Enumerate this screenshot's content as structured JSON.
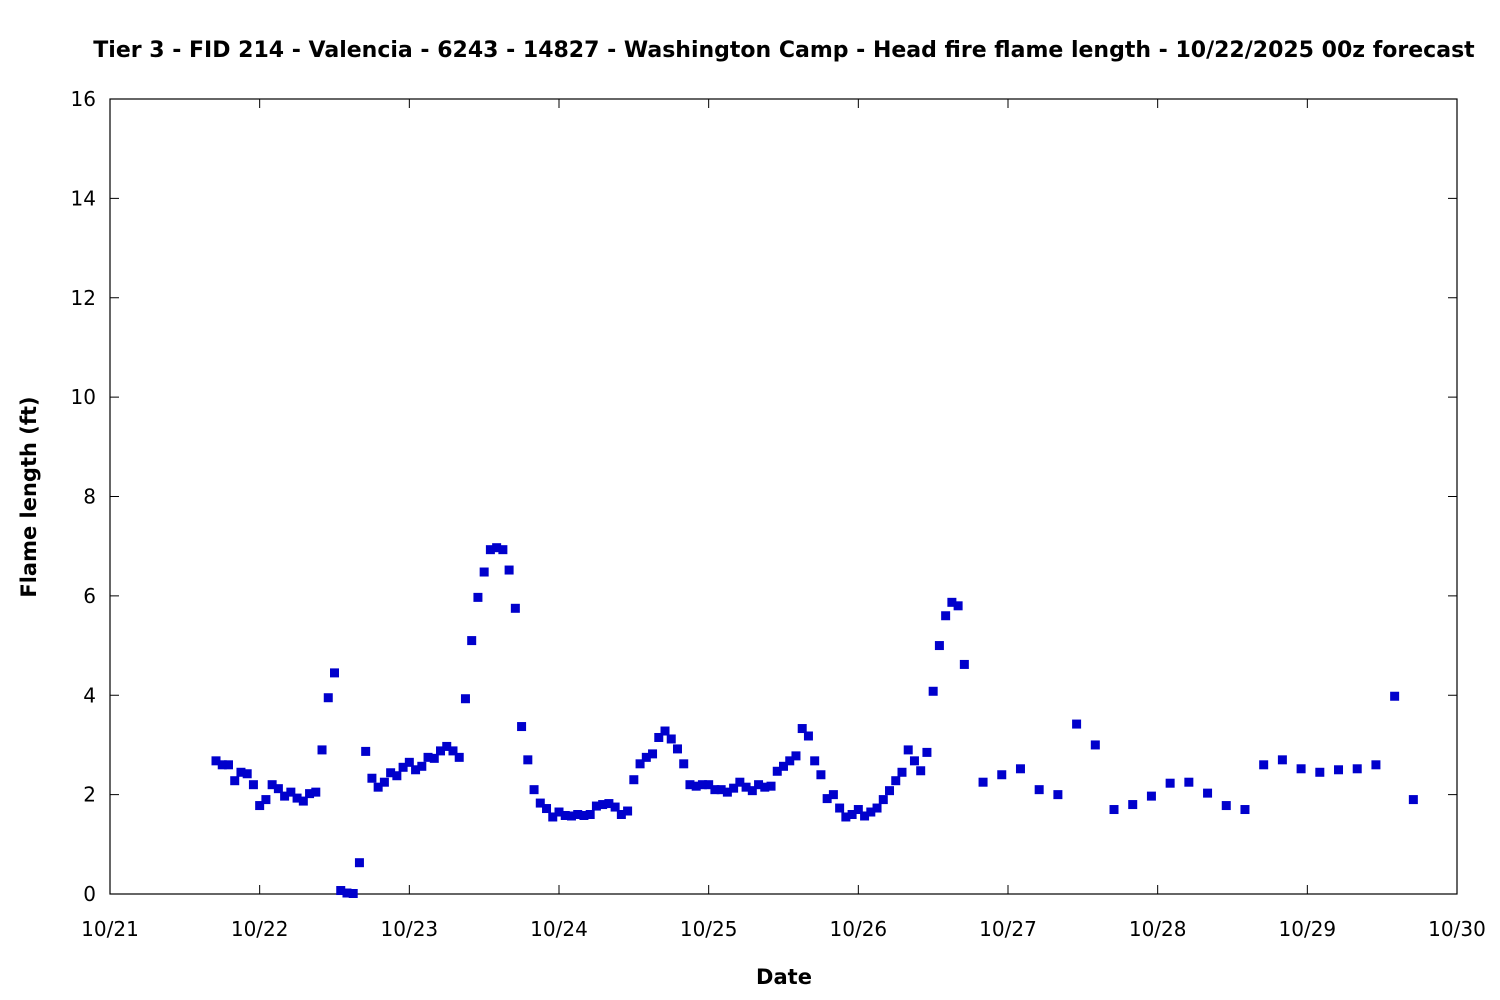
{
  "chart_data": {
    "type": "scatter",
    "title": "Tier 3 - FID 214 - Valencia - 6243 - 14827 - Washington Camp - Head fire flame length - 10/22/2025 00z forecast",
    "xlabel": "Date",
    "ylabel": "Flame length (ft)",
    "xlim": [
      "2025-10-21 00:00",
      "2025-10-30 00:00"
    ],
    "ylim": [
      0,
      16
    ],
    "x_tick_labels": [
      "10/21",
      "10/22",
      "10/23",
      "10/24",
      "10/25",
      "10/26",
      "10/27",
      "10/28",
      "10/29",
      "10/30"
    ],
    "y_tick_labels": [
      "0",
      "2",
      "4",
      "6",
      "8",
      "10",
      "12",
      "14",
      "16"
    ],
    "grid": false,
    "legend": "none",
    "marker": "square",
    "color": "#0000cc",
    "series": [
      {
        "points": [
          [
            "2025-10-21 17:00",
            2.68
          ],
          [
            "2025-10-21 18:00",
            2.6
          ],
          [
            "2025-10-21 19:00",
            2.6
          ],
          [
            "2025-10-21 20:00",
            2.28
          ],
          [
            "2025-10-21 21:00",
            2.45
          ],
          [
            "2025-10-21 22:00",
            2.42
          ],
          [
            "2025-10-21 23:00",
            2.2
          ],
          [
            "2025-10-22 00:00",
            1.78
          ],
          [
            "2025-10-22 01:00",
            1.9
          ],
          [
            "2025-10-22 02:00",
            2.2
          ],
          [
            "2025-10-22 03:00",
            2.12
          ],
          [
            "2025-10-22 04:00",
            1.97
          ],
          [
            "2025-10-22 05:00",
            2.05
          ],
          [
            "2025-10-22 06:00",
            1.93
          ],
          [
            "2025-10-22 07:00",
            1.87
          ],
          [
            "2025-10-22 08:00",
            2.02
          ],
          [
            "2025-10-22 09:00",
            2.05
          ],
          [
            "2025-10-22 10:00",
            2.9
          ],
          [
            "2025-10-22 11:00",
            3.95
          ],
          [
            "2025-10-22 12:00",
            4.45
          ],
          [
            "2025-10-22 13:00",
            0.07
          ],
          [
            "2025-10-22 14:00",
            0.02
          ],
          [
            "2025-10-22 15:00",
            0.01
          ],
          [
            "2025-10-22 16:00",
            0.63
          ],
          [
            "2025-10-22 17:00",
            2.87
          ],
          [
            "2025-10-22 18:00",
            2.33
          ],
          [
            "2025-10-22 19:00",
            2.15
          ],
          [
            "2025-10-22 20:00",
            2.25
          ],
          [
            "2025-10-22 21:00",
            2.44
          ],
          [
            "2025-10-22 22:00",
            2.38
          ],
          [
            "2025-10-22 23:00",
            2.55
          ],
          [
            "2025-10-23 00:00",
            2.65
          ],
          [
            "2025-10-23 01:00",
            2.5
          ],
          [
            "2025-10-23 02:00",
            2.57
          ],
          [
            "2025-10-23 03:00",
            2.75
          ],
          [
            "2025-10-23 04:00",
            2.73
          ],
          [
            "2025-10-23 05:00",
            2.88
          ],
          [
            "2025-10-23 06:00",
            2.97
          ],
          [
            "2025-10-23 07:00",
            2.88
          ],
          [
            "2025-10-23 08:00",
            2.75
          ],
          [
            "2025-10-23 09:00",
            3.93
          ],
          [
            "2025-10-23 10:00",
            5.1
          ],
          [
            "2025-10-23 11:00",
            5.97
          ],
          [
            "2025-10-23 12:00",
            6.48
          ],
          [
            "2025-10-23 13:00",
            6.93
          ],
          [
            "2025-10-23 14:00",
            6.97
          ],
          [
            "2025-10-23 15:00",
            6.93
          ],
          [
            "2025-10-23 16:00",
            6.52
          ],
          [
            "2025-10-23 17:00",
            5.75
          ],
          [
            "2025-10-23 18:00",
            3.37
          ],
          [
            "2025-10-23 19:00",
            2.7
          ],
          [
            "2025-10-23 20:00",
            2.1
          ],
          [
            "2025-10-23 21:00",
            1.83
          ],
          [
            "2025-10-23 22:00",
            1.72
          ],
          [
            "2025-10-23 23:00",
            1.55
          ],
          [
            "2025-10-24 00:00",
            1.65
          ],
          [
            "2025-10-24 01:00",
            1.58
          ],
          [
            "2025-10-24 02:00",
            1.57
          ],
          [
            "2025-10-24 03:00",
            1.6
          ],
          [
            "2025-10-24 04:00",
            1.58
          ],
          [
            "2025-10-24 05:00",
            1.6
          ],
          [
            "2025-10-24 06:00",
            1.77
          ],
          [
            "2025-10-24 07:00",
            1.8
          ],
          [
            "2025-10-24 08:00",
            1.82
          ],
          [
            "2025-10-24 09:00",
            1.75
          ],
          [
            "2025-10-24 10:00",
            1.6
          ],
          [
            "2025-10-24 11:00",
            1.67
          ],
          [
            "2025-10-24 12:00",
            2.3
          ],
          [
            "2025-10-24 13:00",
            2.62
          ],
          [
            "2025-10-24 14:00",
            2.75
          ],
          [
            "2025-10-24 15:00",
            2.82
          ],
          [
            "2025-10-24 16:00",
            3.15
          ],
          [
            "2025-10-24 17:00",
            3.28
          ],
          [
            "2025-10-24 18:00",
            3.12
          ],
          [
            "2025-10-24 19:00",
            2.92
          ],
          [
            "2025-10-24 20:00",
            2.62
          ],
          [
            "2025-10-24 21:00",
            2.2
          ],
          [
            "2025-10-24 22:00",
            2.17
          ],
          [
            "2025-10-24 23:00",
            2.2
          ],
          [
            "2025-10-25 00:00",
            2.2
          ],
          [
            "2025-10-25 01:00",
            2.1
          ],
          [
            "2025-10-25 02:00",
            2.1
          ],
          [
            "2025-10-25 03:00",
            2.05
          ],
          [
            "2025-10-25 04:00",
            2.13
          ],
          [
            "2025-10-25 05:00",
            2.25
          ],
          [
            "2025-10-25 06:00",
            2.15
          ],
          [
            "2025-10-25 07:00",
            2.08
          ],
          [
            "2025-10-25 08:00",
            2.2
          ],
          [
            "2025-10-25 09:00",
            2.15
          ],
          [
            "2025-10-25 10:00",
            2.17
          ],
          [
            "2025-10-25 11:00",
            2.47
          ],
          [
            "2025-10-25 12:00",
            2.57
          ],
          [
            "2025-10-25 13:00",
            2.68
          ],
          [
            "2025-10-25 14:00",
            2.78
          ],
          [
            "2025-10-25 15:00",
            3.33
          ],
          [
            "2025-10-25 16:00",
            3.18
          ],
          [
            "2025-10-25 17:00",
            2.68
          ],
          [
            "2025-10-25 18:00",
            2.4
          ],
          [
            "2025-10-25 19:00",
            1.92
          ],
          [
            "2025-10-25 20:00",
            2.0
          ],
          [
            "2025-10-25 21:00",
            1.73
          ],
          [
            "2025-10-25 22:00",
            1.55
          ],
          [
            "2025-10-25 23:00",
            1.6
          ],
          [
            "2025-10-26 00:00",
            1.7
          ],
          [
            "2025-10-26 01:00",
            1.57
          ],
          [
            "2025-10-26 02:00",
            1.65
          ],
          [
            "2025-10-26 03:00",
            1.73
          ],
          [
            "2025-10-26 04:00",
            1.9
          ],
          [
            "2025-10-26 05:00",
            2.08
          ],
          [
            "2025-10-26 06:00",
            2.28
          ],
          [
            "2025-10-26 07:00",
            2.45
          ],
          [
            "2025-10-26 08:00",
            2.9
          ],
          [
            "2025-10-26 09:00",
            2.68
          ],
          [
            "2025-10-26 10:00",
            2.48
          ],
          [
            "2025-10-26 11:00",
            2.85
          ],
          [
            "2025-10-26 12:00",
            4.08
          ],
          [
            "2025-10-26 13:00",
            5.0
          ],
          [
            "2025-10-26 14:00",
            5.6
          ],
          [
            "2025-10-26 15:00",
            5.87
          ],
          [
            "2025-10-26 16:00",
            5.8
          ],
          [
            "2025-10-26 17:00",
            4.62
          ],
          [
            "2025-10-26 20:00",
            2.25
          ],
          [
            "2025-10-26 23:00",
            2.4
          ],
          [
            "2025-10-27 02:00",
            2.52
          ],
          [
            "2025-10-27 05:00",
            2.1
          ],
          [
            "2025-10-27 08:00",
            2.0
          ],
          [
            "2025-10-27 11:00",
            3.42
          ],
          [
            "2025-10-27 14:00",
            3.0
          ],
          [
            "2025-10-27 17:00",
            1.7
          ],
          [
            "2025-10-27 20:00",
            1.8
          ],
          [
            "2025-10-27 23:00",
            1.97
          ],
          [
            "2025-10-28 02:00",
            2.23
          ],
          [
            "2025-10-28 05:00",
            2.25
          ],
          [
            "2025-10-28 08:00",
            2.03
          ],
          [
            "2025-10-28 11:00",
            1.78
          ],
          [
            "2025-10-28 14:00",
            1.7
          ],
          [
            "2025-10-28 17:00",
            2.6
          ],
          [
            "2025-10-28 20:00",
            2.7
          ],
          [
            "2025-10-28 23:00",
            2.52
          ],
          [
            "2025-10-29 02:00",
            2.45
          ],
          [
            "2025-10-29 05:00",
            2.5
          ],
          [
            "2025-10-29 08:00",
            2.52
          ],
          [
            "2025-10-29 11:00",
            2.6
          ],
          [
            "2025-10-29 14:00",
            3.98
          ],
          [
            "2025-10-29 17:00",
            1.9
          ]
        ]
      }
    ]
  }
}
